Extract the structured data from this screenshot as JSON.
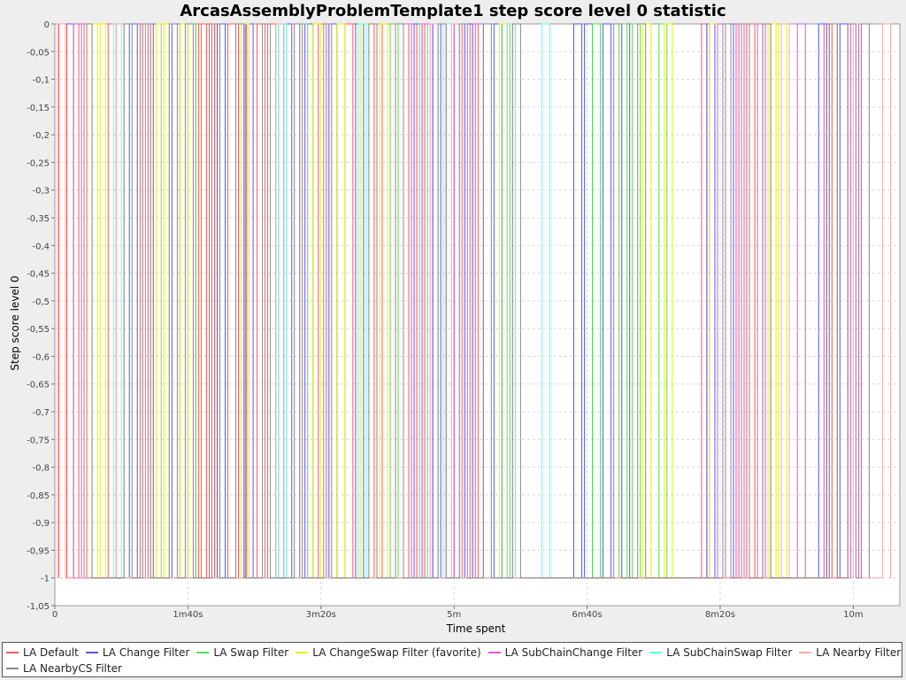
{
  "chart_data": {
    "type": "line",
    "title": "ArcasAssemblyProblemTemplate1 step score level 0 statistic",
    "xlabel": "Time spent",
    "ylabel": "Step score level 0",
    "xlim": [
      0,
      635
    ],
    "ylim": [
      -1.05,
      0
    ],
    "x_ticks": [
      {
        "value": 0,
        "label": "0"
      },
      {
        "value": 100,
        "label": "1m40s"
      },
      {
        "value": 200,
        "label": "3m20s"
      },
      {
        "value": 300,
        "label": "5m"
      },
      {
        "value": 400,
        "label": "6m40s"
      },
      {
        "value": 500,
        "label": "8m20s"
      },
      {
        "value": 600,
        "label": "10m"
      }
    ],
    "y_ticks": [
      {
        "value": 0,
        "label": "0"
      },
      {
        "value": -0.05,
        "label": "-0,05"
      },
      {
        "value": -0.1,
        "label": "-0,1"
      },
      {
        "value": -0.15,
        "label": "-0,15"
      },
      {
        "value": -0.2,
        "label": "-0,2"
      },
      {
        "value": -0.25,
        "label": "-0,25"
      },
      {
        "value": -0.3,
        "label": "-0,3"
      },
      {
        "value": -0.35,
        "label": "-0,35"
      },
      {
        "value": -0.4,
        "label": "-0,4"
      },
      {
        "value": -0.45,
        "label": "-0,45"
      },
      {
        "value": -0.5,
        "label": "-0,5"
      },
      {
        "value": -0.55,
        "label": "-0,55"
      },
      {
        "value": -0.6,
        "label": "-0,6"
      },
      {
        "value": -0.65,
        "label": "-0,65"
      },
      {
        "value": -0.7,
        "label": "-0,7"
      },
      {
        "value": -0.75,
        "label": "-0,75"
      },
      {
        "value": -0.8,
        "label": "-0,8"
      },
      {
        "value": -0.85,
        "label": "-0,85"
      },
      {
        "value": -0.9,
        "label": "-0,9"
      },
      {
        "value": -0.95,
        "label": "-0,95"
      },
      {
        "value": -1,
        "label": "-1"
      },
      {
        "value": -1.05,
        "label": "-1,05"
      }
    ],
    "grid": true,
    "legend_position": "bottom",
    "series": [
      {
        "name": "LA Default",
        "color": "#ff5555",
        "spikes": [
          [
            3,
            9
          ],
          [
            18,
            24
          ],
          [
            40,
            46
          ],
          [
            64,
            70
          ],
          [
            108,
            114
          ],
          [
            110,
            116
          ],
          [
            114,
            120
          ],
          [
            130,
            136
          ],
          [
            138,
            144
          ],
          [
            152,
            158
          ],
          [
            160,
            166
          ],
          [
            198,
            204
          ],
          [
            218,
            224
          ],
          [
            240,
            246
          ],
          [
            246,
            252
          ],
          [
            266,
            272
          ],
          [
            278,
            284
          ],
          [
            300,
            306
          ],
          [
            312,
            318
          ],
          [
            340,
            346
          ],
          [
            486,
            492
          ],
          [
            490,
            496
          ],
          [
            498,
            504
          ],
          [
            508,
            514
          ],
          [
            520,
            526
          ],
          [
            578,
            584
          ],
          [
            582,
            588
          ]
        ]
      },
      {
        "name": "LA Change Filter",
        "color": "#5555ff",
        "spikes": [
          [
            8,
            14
          ],
          [
            56,
            62
          ],
          [
            74,
            80
          ],
          [
            88,
            94
          ],
          [
            100,
            106
          ],
          [
            122,
            128
          ],
          [
            143,
            149
          ],
          [
            172,
            178
          ],
          [
            188,
            194
          ],
          [
            206,
            212
          ],
          [
            226,
            232
          ],
          [
            252,
            258
          ],
          [
            270,
            276
          ],
          [
            284,
            290
          ],
          [
            308,
            314
          ],
          [
            330,
            336
          ],
          [
            390,
            396
          ],
          [
            398,
            404
          ],
          [
            412,
            418
          ],
          [
            426,
            432
          ],
          [
            490,
            496
          ],
          [
            504,
            510
          ],
          [
            574,
            580
          ],
          [
            590,
            596
          ]
        ]
      },
      {
        "name": "LA Swap Filter",
        "color": "#55dd55",
        "spikes": [
          [
            100,
            106
          ],
          [
            184,
            190
          ],
          [
            244,
            250
          ],
          [
            252,
            258
          ],
          [
            274,
            280
          ],
          [
            336,
            342
          ],
          [
            404,
            410
          ],
          [
            424,
            430
          ],
          [
            434,
            440
          ],
          [
            454,
            460
          ]
        ]
      },
      {
        "name": "LA ChangeSwap Filter (favorite)",
        "color": "#eeee00",
        "spikes": [
          [
            28,
            34
          ],
          [
            32,
            38
          ],
          [
            76,
            82
          ],
          [
            80,
            86
          ],
          [
            94,
            100
          ],
          [
            140,
            146
          ],
          [
            168,
            174
          ],
          [
            194,
            200
          ],
          [
            212,
            218
          ],
          [
            230,
            236
          ],
          [
            244,
            250
          ],
          [
            334,
            340
          ],
          [
            442,
            448
          ],
          [
            458,
            464
          ],
          [
            492,
            498
          ],
          [
            536,
            542
          ],
          [
            544,
            550
          ],
          [
            596,
            602
          ]
        ]
      },
      {
        "name": "LA SubChainChange Filter",
        "color": "#dd55dd",
        "spikes": [
          [
            14,
            20
          ],
          [
            68,
            74
          ],
          [
            178,
            184
          ],
          [
            262,
            268
          ],
          [
            276,
            282
          ],
          [
            294,
            300
          ],
          [
            316,
            322
          ],
          [
            498,
            504
          ],
          [
            512,
            518
          ],
          [
            528,
            534
          ],
          [
            532,
            538
          ],
          [
            558,
            564
          ],
          [
            598,
            604
          ]
        ]
      },
      {
        "name": "LA SubChainSwap Filter",
        "color": "#55ffff",
        "spikes": [
          [
            44,
            50
          ],
          [
            168,
            174
          ],
          [
            228,
            234
          ],
          [
            292,
            298
          ],
          [
            340,
            346
          ],
          [
            366,
            372
          ]
        ]
      },
      {
        "name": "LA Nearby Filter",
        "color": "#ffaaaa",
        "spikes": [
          [
            2,
            8
          ],
          [
            46,
            52
          ],
          [
            166,
            172
          ],
          [
            282,
            288
          ],
          [
            298,
            304
          ],
          [
            546,
            552
          ],
          [
            600,
            606
          ],
          [
            622,
            628
          ]
        ]
      },
      {
        "name": "LA NearbyCS Filter",
        "color": "#888888",
        "spikes": [
          [
            22,
            28
          ],
          [
            52,
            58
          ],
          [
            66,
            72
          ],
          [
            86,
            92
          ],
          [
            98,
            104
          ],
          [
            118,
            124
          ],
          [
            136,
            142
          ],
          [
            156,
            162
          ],
          [
            180,
            186
          ],
          [
            202,
            208
          ],
          [
            236,
            242
          ],
          [
            256,
            262
          ],
          [
            288,
            294
          ],
          [
            304,
            310
          ],
          [
            322,
            328
          ],
          [
            344,
            350
          ],
          [
            420,
            426
          ],
          [
            438,
            444
          ],
          [
            502,
            508
          ],
          [
            516,
            522
          ],
          [
            532,
            538
          ],
          [
            582,
            588
          ],
          [
            596,
            602
          ],
          [
            606,
            612
          ]
        ]
      }
    ]
  }
}
